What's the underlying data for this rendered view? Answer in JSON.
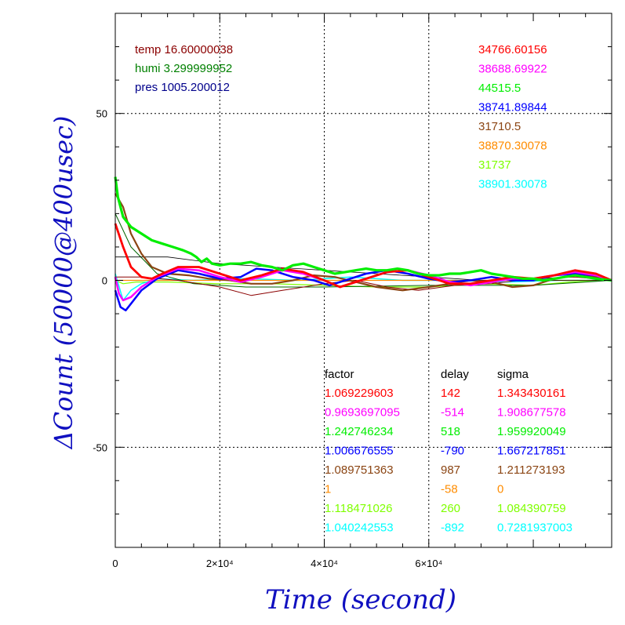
{
  "chart_data": {
    "type": "line",
    "title": "",
    "xlabel": "Time (second)",
    "ylabel": "ΔCount (50000@400usec)",
    "xlim": [
      0,
      95000
    ],
    "ylim": [
      -80,
      80
    ],
    "x_tick_labels": [
      {
        "value": 0,
        "label": "0"
      },
      {
        "value": 20000,
        "label": "2×10⁴"
      },
      {
        "value": 40000,
        "label": "4×10⁴"
      },
      {
        "value": 60000,
        "label": "6×10⁴"
      }
    ],
    "y_tick_labels": [
      {
        "value": 50,
        "label": "50"
      },
      {
        "value": 0,
        "label": "0"
      },
      {
        "value": -50,
        "label": "-50"
      }
    ],
    "grid": true,
    "env_notes": [
      {
        "text": "temp 16.60000038",
        "color": "#8b0000"
      },
      {
        "text": "humi 3.299999952",
        "color": "#008000"
      },
      {
        "text": "pres 1005.200012",
        "color": "#00008b"
      }
    ],
    "right_values": [
      {
        "text": "34766.60156",
        "color": "#ff0000"
      },
      {
        "text": "38688.69922",
        "color": "#ff00ff"
      },
      {
        "text": "44515.5",
        "color": "#00ee00"
      },
      {
        "text": "38741.89844",
        "color": "#0000ff"
      },
      {
        "text": "31710.5",
        "color": "#8b4513"
      },
      {
        "text": "38870.30078",
        "color": "#ff8c00"
      },
      {
        "text": "31737",
        "color": "#7fff00"
      },
      {
        "text": "38901.30078",
        "color": "#00ffff"
      }
    ],
    "table": {
      "headers": [
        "factor",
        "delay",
        "sigma"
      ],
      "rows": [
        {
          "factor": "1.069229603",
          "delay": "142",
          "sigma": "1.343430161",
          "color": "#ff0000"
        },
        {
          "factor": "0.9693697095",
          "delay": "-514",
          "sigma": "1.908677578",
          "color": "#ff00ff"
        },
        {
          "factor": "1.242746234",
          "delay": "518",
          "sigma": "1.959920049",
          "color": "#00ee00"
        },
        {
          "factor": "1.006676555",
          "delay": "-790",
          "sigma": "1.667217851",
          "color": "#0000ff"
        },
        {
          "factor": "1.089751363",
          "delay": "987",
          "sigma": "1.211273193",
          "color": "#8b4513"
        },
        {
          "factor": "1",
          "delay": "-58",
          "sigma": "0",
          "color": "#ff8c00"
        },
        {
          "factor": "1.118471026",
          "delay": "260",
          "sigma": "1.084390759",
          "color": "#7fff00"
        },
        {
          "factor": "1.040242553",
          "delay": "-892",
          "sigma": "0.7281937003",
          "color": "#00ffff"
        }
      ]
    },
    "series": [
      {
        "color": "#7fff00",
        "width": 1.2,
        "points": [
          [
            0,
            0
          ],
          [
            1500,
            -1
          ],
          [
            4000,
            -0.5
          ],
          [
            10000,
            -0.5
          ],
          [
            20000,
            -1
          ],
          [
            30000,
            -1
          ],
          [
            40000,
            -1.5
          ],
          [
            50000,
            -2
          ],
          [
            60000,
            -2
          ],
          [
            70000,
            -1
          ],
          [
            80000,
            -1.5
          ],
          [
            87000,
            -0.5
          ],
          [
            95000,
            0
          ]
        ]
      },
      {
        "color": "#00ffff",
        "width": 1.5,
        "points": [
          [
            0,
            2
          ],
          [
            1500,
            -6
          ],
          [
            3000,
            -3
          ],
          [
            5000,
            -1
          ],
          [
            8000,
            0.5
          ],
          [
            15000,
            0
          ],
          [
            25000,
            0.5
          ],
          [
            35000,
            0
          ],
          [
            45000,
            1
          ],
          [
            55000,
            0
          ],
          [
            65000,
            0
          ],
          [
            75000,
            -0.5
          ],
          [
            85000,
            0
          ],
          [
            95000,
            0
          ]
        ]
      },
      {
        "color": "#ff8c00",
        "width": 1.2,
        "points": [
          [
            0,
            0
          ],
          [
            20000,
            0
          ],
          [
            50000,
            0
          ],
          [
            95000,
            0
          ]
        ]
      },
      {
        "color": "#006400",
        "width": 1.0,
        "points": [
          [
            0,
            20
          ],
          [
            3000,
            10
          ],
          [
            8000,
            2
          ],
          [
            15000,
            -1
          ],
          [
            25000,
            -2
          ],
          [
            40000,
            -2
          ],
          [
            60000,
            -1.5
          ],
          [
            80000,
            -1.5
          ],
          [
            95000,
            0
          ]
        ]
      },
      {
        "color": "#8b0000",
        "width": 1.0,
        "points": [
          [
            0,
            1
          ],
          [
            5000,
            1
          ],
          [
            12000,
            0
          ],
          [
            20000,
            -2
          ],
          [
            26000,
            -4.5
          ],
          [
            32000,
            -3
          ],
          [
            40000,
            -1
          ],
          [
            46000,
            0
          ],
          [
            52000,
            -2
          ],
          [
            58000,
            -3
          ],
          [
            65000,
            -1.5
          ],
          [
            72000,
            -1
          ],
          [
            80000,
            0.5
          ],
          [
            88000,
            1
          ],
          [
            95000,
            0
          ]
        ]
      },
      {
        "color": "#000000",
        "width": 0.8,
        "points": [
          [
            0,
            7
          ],
          [
            10000,
            7
          ],
          [
            20000,
            5
          ],
          [
            30000,
            4
          ],
          [
            40000,
            3
          ],
          [
            50000,
            2
          ],
          [
            60000,
            1
          ],
          [
            70000,
            0
          ],
          [
            80000,
            0
          ],
          [
            95000,
            0
          ]
        ]
      },
      {
        "color": "#8b4513",
        "width": 2.2,
        "points": [
          [
            0,
            26
          ],
          [
            1500,
            22
          ],
          [
            3000,
            14
          ],
          [
            5000,
            8
          ],
          [
            7000,
            4
          ],
          [
            10000,
            2
          ],
          [
            14000,
            1.5
          ],
          [
            18000,
            0.5
          ],
          [
            22000,
            0
          ],
          [
            26000,
            -1
          ],
          [
            30000,
            -1
          ],
          [
            34000,
            0
          ],
          [
            38000,
            1.5
          ],
          [
            42000,
            1
          ],
          [
            46000,
            -0.5
          ],
          [
            50000,
            -2
          ],
          [
            55000,
            -3
          ],
          [
            60000,
            -2
          ],
          [
            64000,
            -1
          ],
          [
            68000,
            0
          ],
          [
            72000,
            -0.5
          ],
          [
            76000,
            -2
          ],
          [
            80000,
            -1.5
          ],
          [
            84000,
            0.5
          ],
          [
            88000,
            1.5
          ],
          [
            92000,
            1
          ],
          [
            95000,
            0
          ]
        ]
      },
      {
        "color": "#0000ff",
        "width": 2.5,
        "points": [
          [
            0,
            -3
          ],
          [
            1000,
            -8
          ],
          [
            2000,
            -9
          ],
          [
            3000,
            -7
          ],
          [
            5000,
            -3
          ],
          [
            8000,
            0.5
          ],
          [
            12000,
            3
          ],
          [
            16000,
            2
          ],
          [
            20000,
            0.5
          ],
          [
            24000,
            1
          ],
          [
            27000,
            3.5
          ],
          [
            30000,
            3
          ],
          [
            34000,
            1
          ],
          [
            38000,
            0
          ],
          [
            41000,
            -1.5
          ],
          [
            44000,
            0
          ],
          [
            48000,
            2
          ],
          [
            52000,
            3
          ],
          [
            56000,
            2
          ],
          [
            60000,
            0.5
          ],
          [
            64000,
            -0.5
          ],
          [
            68000,
            0
          ],
          [
            72000,
            1
          ],
          [
            76000,
            0
          ],
          [
            80000,
            0
          ],
          [
            84000,
            1.5
          ],
          [
            88000,
            2
          ],
          [
            92000,
            1.5
          ],
          [
            95000,
            0
          ]
        ]
      },
      {
        "color": "#ff00ff",
        "width": 2.5,
        "points": [
          [
            0,
            1
          ],
          [
            700,
            -4
          ],
          [
            1500,
            -6
          ],
          [
            3000,
            -5
          ],
          [
            5000,
            -2
          ],
          [
            8000,
            1
          ],
          [
            12000,
            3.5
          ],
          [
            16000,
            3
          ],
          [
            20000,
            1
          ],
          [
            24000,
            -0.5
          ],
          [
            28000,
            1
          ],
          [
            32000,
            3
          ],
          [
            36000,
            2
          ],
          [
            40000,
            0
          ],
          [
            43000,
            -2
          ],
          [
            47000,
            0
          ],
          [
            52000,
            2.5
          ],
          [
            56000,
            3
          ],
          [
            60000,
            1.5
          ],
          [
            64000,
            -0.5
          ],
          [
            68000,
            -1.5
          ],
          [
            72000,
            -0.5
          ],
          [
            76000,
            0.5
          ],
          [
            80000,
            0.5
          ],
          [
            84000,
            1.5
          ],
          [
            88000,
            2.5
          ],
          [
            92000,
            1.5
          ],
          [
            95000,
            0
          ]
        ]
      },
      {
        "color": "#ff0000",
        "width": 2.8,
        "points": [
          [
            0,
            17
          ],
          [
            1500,
            10
          ],
          [
            3000,
            4
          ],
          [
            5000,
            1
          ],
          [
            7000,
            0.5
          ],
          [
            9000,
            2
          ],
          [
            12000,
            4
          ],
          [
            16000,
            4
          ],
          [
            20000,
            2
          ],
          [
            24000,
            0
          ],
          [
            28000,
            1.5
          ],
          [
            32000,
            3.5
          ],
          [
            36000,
            2.5
          ],
          [
            40000,
            0
          ],
          [
            43000,
            -2
          ],
          [
            47000,
            0
          ],
          [
            52000,
            2.5
          ],
          [
            56000,
            3
          ],
          [
            60000,
            1
          ],
          [
            64000,
            -1
          ],
          [
            68000,
            -1
          ],
          [
            72000,
            0
          ],
          [
            76000,
            1
          ],
          [
            80000,
            0.5
          ],
          [
            84000,
            1.5
          ],
          [
            88000,
            3
          ],
          [
            92000,
            2
          ],
          [
            95000,
            0
          ]
        ]
      },
      {
        "color": "#00ee00",
        "width": 3.2,
        "points": [
          [
            0,
            31
          ],
          [
            500,
            25
          ],
          [
            1500,
            19
          ],
          [
            3000,
            16
          ],
          [
            5000,
            14
          ],
          [
            7000,
            12
          ],
          [
            9000,
            11
          ],
          [
            11000,
            10
          ],
          [
            13000,
            9
          ],
          [
            14500,
            8
          ],
          [
            15500,
            7
          ],
          [
            16500,
            5.5
          ],
          [
            17500,
            6.5
          ],
          [
            18500,
            5
          ],
          [
            20000,
            4.5
          ],
          [
            22000,
            5
          ],
          [
            24000,
            5
          ],
          [
            26000,
            5.5
          ],
          [
            28000,
            4.5
          ],
          [
            30000,
            4
          ],
          [
            32000,
            3
          ],
          [
            34000,
            4.5
          ],
          [
            36000,
            5
          ],
          [
            38000,
            4
          ],
          [
            40000,
            3
          ],
          [
            42000,
            2
          ],
          [
            44000,
            2.5
          ],
          [
            46000,
            3
          ],
          [
            48000,
            3.5
          ],
          [
            50000,
            3
          ],
          [
            52000,
            3
          ],
          [
            54000,
            3.5
          ],
          [
            56000,
            3
          ],
          [
            58000,
            2
          ],
          [
            60000,
            1.5
          ],
          [
            62000,
            1.5
          ],
          [
            64000,
            2
          ],
          [
            66000,
            2
          ],
          [
            68000,
            2.5
          ],
          [
            70000,
            3
          ],
          [
            72000,
            2
          ],
          [
            74000,
            1.5
          ],
          [
            76000,
            1
          ],
          [
            78000,
            0.5
          ],
          [
            80000,
            0.5
          ],
          [
            82000,
            0
          ],
          [
            84000,
            0.5
          ],
          [
            86000,
            1
          ],
          [
            88000,
            1.5
          ],
          [
            90000,
            1
          ],
          [
            92000,
            0.5
          ],
          [
            95000,
            0
          ]
        ]
      }
    ]
  }
}
